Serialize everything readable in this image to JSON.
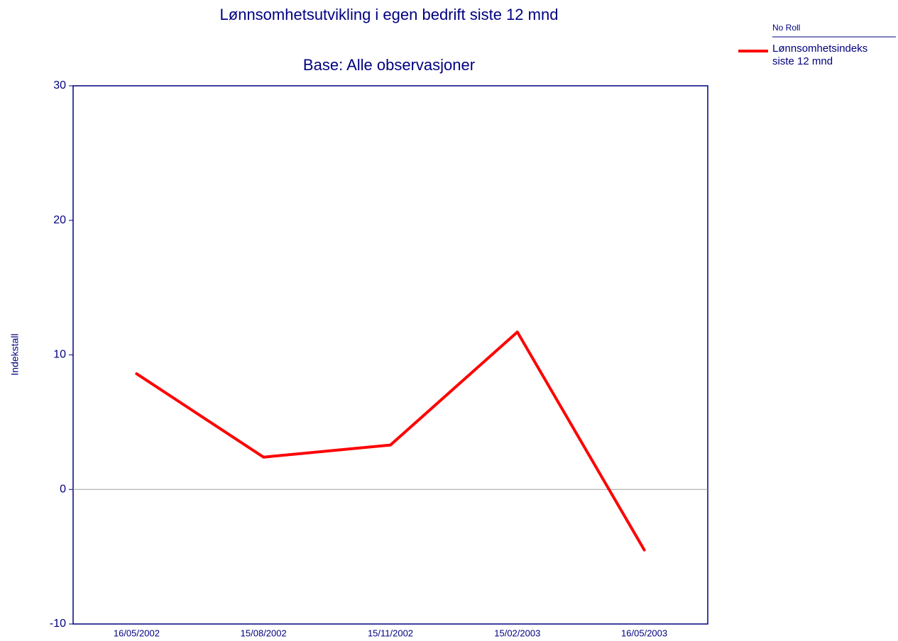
{
  "chart_data": {
    "type": "line",
    "title": "Lønnsomhetsutvikling i egen bedrift siste 12 mnd",
    "subtitle": "Base: Alle observasjoner",
    "y_label": "Indekstall",
    "legend_title": "No Roll",
    "categories": [
      "16/05/2002",
      "15/08/2002",
      "15/11/2002",
      "15/02/2003",
      "16/05/2003"
    ],
    "series": [
      {
        "name": "Lønnsomhetsindeks siste 12 mnd",
        "color": "#ff0000",
        "values": [
          8.6,
          2.4,
          3.3,
          11.7,
          -4.5
        ]
      }
    ],
    "ylim": [
      -10,
      30
    ],
    "yticks": [
      -10,
      0,
      10,
      20,
      30
    ],
    "zero_line": true
  }
}
